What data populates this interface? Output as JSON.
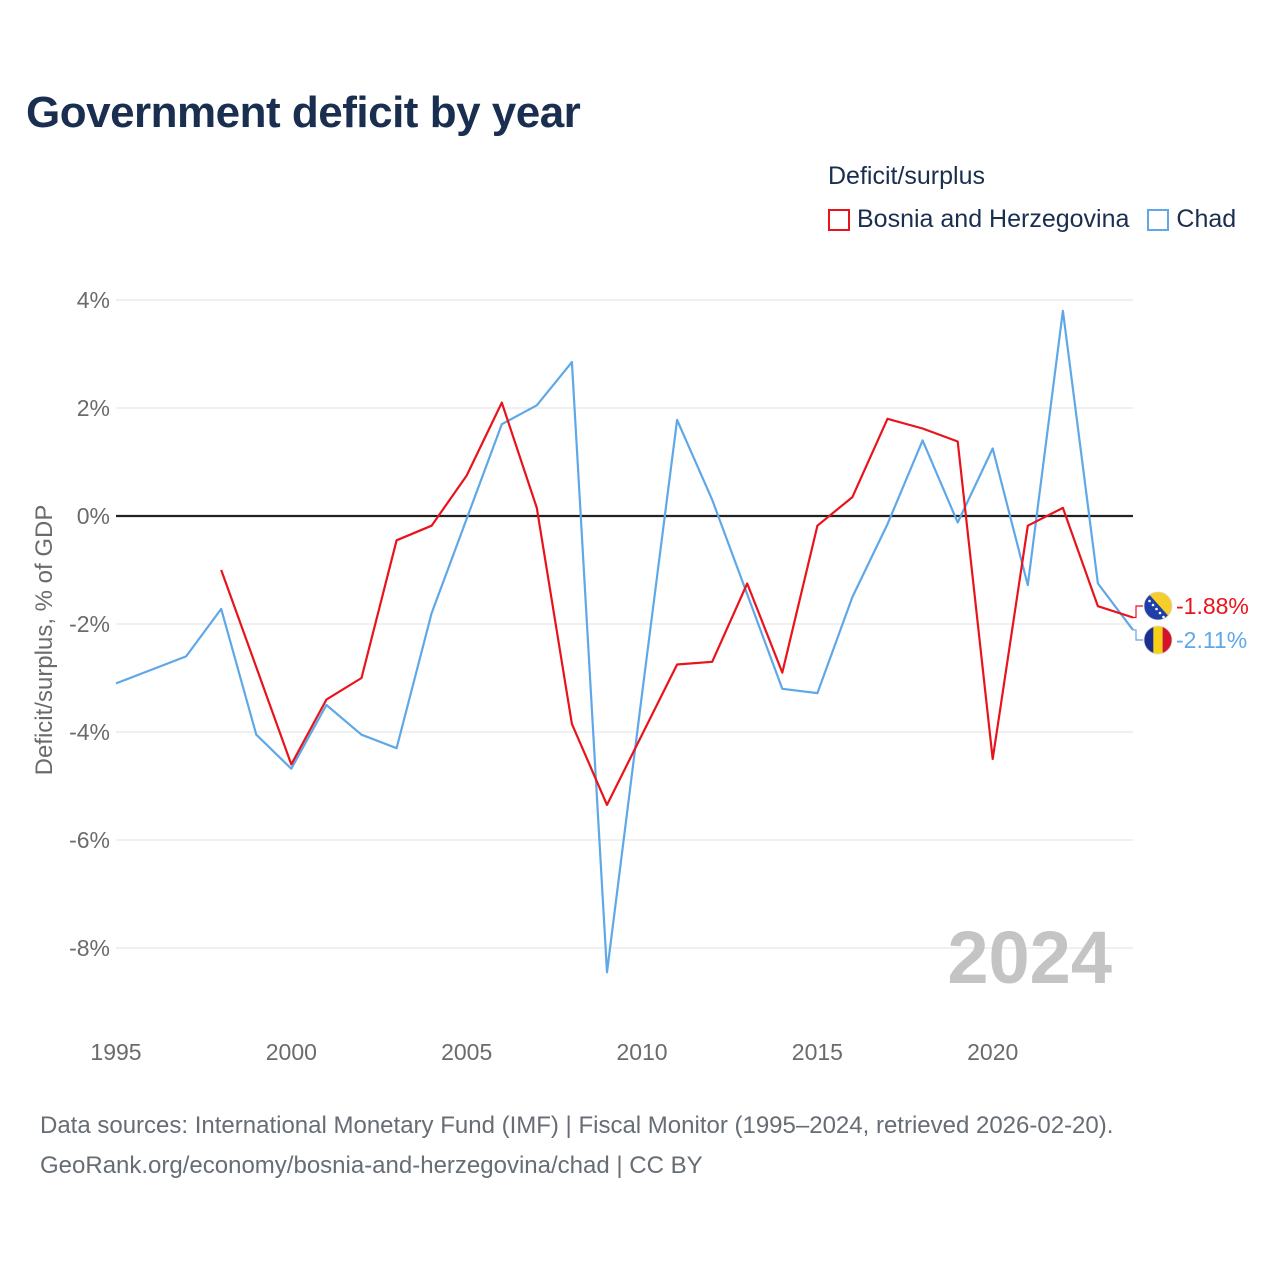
{
  "title": "Government deficit by year",
  "legend": {
    "title": "Deficit/surplus",
    "items": [
      {
        "label": "Bosnia and Herzegovina",
        "color": "#e8131b"
      },
      {
        "label": "Chad",
        "color": "#5fa8e8"
      }
    ]
  },
  "footer": {
    "line1": "Data sources: International Monetary Fund (IMF) | Fiscal Monitor (1995–2024, retrieved 2026-02-20).",
    "line2": "GeoRank.org/economy/bosnia-and-herzegovina/chad | CC BY"
  },
  "chart_data": {
    "type": "line",
    "title": "Government deficit by year",
    "xlabel": "",
    "ylabel": "Deficit/surplus, % of GDP",
    "xlim": [
      1995,
      2024
    ],
    "ylim": [
      -9.2,
      4.5
    ],
    "y_ticks": [
      4,
      2,
      0,
      -2,
      -4,
      -6,
      -8
    ],
    "y_tick_labels": [
      "4%",
      "2%",
      "0%",
      "-2%",
      "-4%",
      "-6%",
      "-8%"
    ],
    "x_ticks": [
      1995,
      2000,
      2005,
      2010,
      2015,
      2020
    ],
    "x_tick_labels": [
      "1995",
      "2000",
      "2005",
      "2010",
      "2015",
      "2020"
    ],
    "grid": true,
    "zero_line": true,
    "watermark_year": "2024",
    "series": [
      {
        "name": "Bosnia and Herzegovina",
        "color": "#e8131b",
        "end_label": "-1.88%",
        "flag": "bosnia",
        "x": [
          1998,
          1999,
          2000,
          2001,
          2002,
          2003,
          2004,
          2005,
          2006,
          2007,
          2008,
          2009,
          2010,
          2011,
          2012,
          2013,
          2014,
          2015,
          2016,
          2017,
          2018,
          2019,
          2020,
          2021,
          2022,
          2023,
          2024
        ],
        "values": [
          -1.0,
          -2.8,
          -4.6,
          -3.4,
          -3.0,
          -0.45,
          -0.18,
          0.75,
          2.1,
          0.15,
          -3.85,
          -5.35,
          -4.05,
          -2.75,
          -2.7,
          -1.25,
          -2.9,
          -0.18,
          0.35,
          1.8,
          1.62,
          1.38,
          -4.5,
          -0.18,
          0.15,
          -1.67,
          -1.88
        ]
      },
      {
        "name": "Chad",
        "color": "#5fa8e8",
        "end_label": "-2.11%",
        "flag": "chad",
        "x": [
          1995,
          1996,
          1997,
          1998,
          1999,
          2000,
          2001,
          2002,
          2003,
          2004,
          2005,
          2006,
          2007,
          2008,
          2009,
          2010,
          2011,
          2012,
          2013,
          2014,
          2015,
          2016,
          2017,
          2018,
          2019,
          2020,
          2021,
          2022,
          2023,
          2024
        ],
        "values": [
          -3.1,
          -2.85,
          -2.6,
          -1.72,
          -4.05,
          -4.68,
          -3.5,
          -4.05,
          -4.3,
          -1.8,
          -0.05,
          1.7,
          2.05,
          2.85,
          -8.45,
          -3.3,
          1.78,
          0.3,
          -1.45,
          -3.2,
          -3.28,
          -1.5,
          -0.15,
          1.4,
          -0.12,
          1.25,
          -1.28,
          3.8,
          -1.25,
          -2.11
        ]
      }
    ]
  }
}
